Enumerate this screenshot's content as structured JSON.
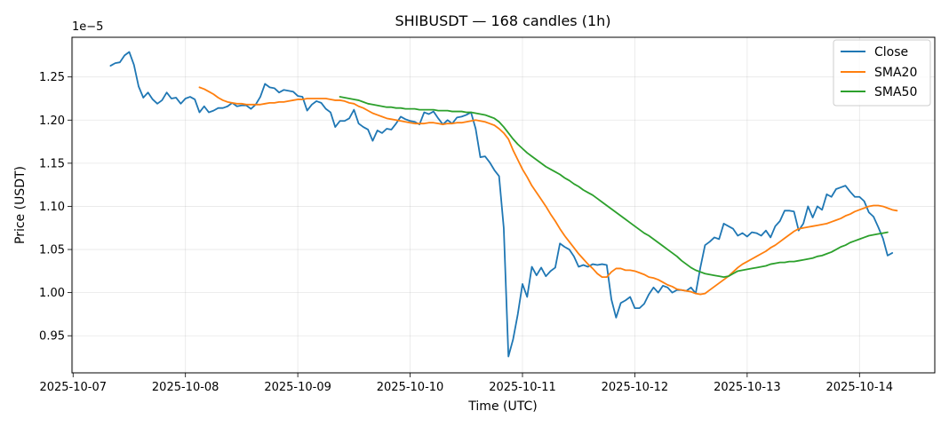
{
  "chart_data": {
    "type": "line",
    "title": "SHIBUSDT — 168 candles (1h)",
    "xlabel": "Time (UTC)",
    "ylabel": "Price (USDT)",
    "y_offset_label": "1e−5",
    "x_ticks": [
      "2025-10-07",
      "2025-10-08",
      "2025-10-09",
      "2025-10-10",
      "2025-10-11",
      "2025-10-12",
      "2025-10-13",
      "2025-10-14"
    ],
    "y_ticks": [
      "0.95",
      "1.00",
      "1.05",
      "1.10",
      "1.15",
      "1.20",
      "1.25"
    ],
    "xlim_days": [
      -0.01,
      7.67
    ],
    "ylim": [
      0.907,
      1.296
    ],
    "grid": true,
    "legend_position": "top-right",
    "x_start_time": "2025-10-07T08:00Z",
    "x_step_hours": 1,
    "series": [
      {
        "name": "Close",
        "color": "#1f77b4",
        "start_index": 0,
        "values": [
          1.263,
          1.266,
          1.267,
          1.275,
          1.279,
          1.264,
          1.239,
          1.226,
          1.232,
          1.224,
          1.219,
          1.223,
          1.232,
          1.225,
          1.226,
          1.219,
          1.225,
          1.227,
          1.224,
          1.209,
          1.216,
          1.209,
          1.211,
          1.214,
          1.214,
          1.216,
          1.22,
          1.216,
          1.217,
          1.217,
          1.213,
          1.218,
          1.227,
          1.242,
          1.238,
          1.237,
          1.232,
          1.235,
          1.234,
          1.233,
          1.228,
          1.227,
          1.211,
          1.218,
          1.222,
          1.22,
          1.213,
          1.209,
          1.192,
          1.199,
          1.199,
          1.202,
          1.212,
          1.196,
          1.192,
          1.189,
          1.176,
          1.188,
          1.185,
          1.19,
          1.189,
          1.196,
          1.204,
          1.201,
          1.199,
          1.198,
          1.195,
          1.209,
          1.207,
          1.21,
          1.202,
          1.195,
          1.2,
          1.196,
          1.203,
          1.204,
          1.206,
          1.209,
          1.19,
          1.157,
          1.158,
          1.151,
          1.142,
          1.135,
          1.075,
          0.926,
          0.946,
          0.975,
          1.01,
          0.995,
          1.03,
          1.02,
          1.029,
          1.019,
          1.025,
          1.029,
          1.057,
          1.053,
          1.05,
          1.042,
          1.03,
          1.032,
          1.03,
          1.033,
          1.032,
          1.033,
          1.032,
          0.992,
          0.971,
          0.988,
          0.991,
          0.995,
          0.982,
          0.982,
          0.987,
          0.998,
          1.006,
          1.0,
          1.008,
          1.006,
          1.0,
          1.003,
          1.003,
          1.002,
          1.006,
          0.999,
          1.029,
          1.055,
          1.059,
          1.064,
          1.062,
          1.08,
          1.077,
          1.074,
          1.066,
          1.069,
          1.065,
          1.07,
          1.069,
          1.066,
          1.072,
          1.064,
          1.077,
          1.083,
          1.095,
          1.095,
          1.094,
          1.072,
          1.08,
          1.1,
          1.087,
          1.1,
          1.096,
          1.114,
          1.111,
          1.12,
          1.122,
          1.124,
          1.117,
          1.111,
          1.111,
          1.106,
          1.093,
          1.088,
          1.076,
          1.063,
          1.043,
          1.046
        ]
      },
      {
        "name": "SMA20",
        "color": "#ff7f0e",
        "start_index": 19,
        "values": [
          1.238,
          1.236,
          1.233,
          1.23,
          1.226,
          1.223,
          1.221,
          1.22,
          1.219,
          1.219,
          1.218,
          1.218,
          1.218,
          1.218,
          1.219,
          1.22,
          1.22,
          1.221,
          1.221,
          1.222,
          1.223,
          1.224,
          1.224,
          1.225,
          1.225,
          1.225,
          1.225,
          1.225,
          1.224,
          1.223,
          1.223,
          1.222,
          1.22,
          1.219,
          1.216,
          1.214,
          1.211,
          1.208,
          1.206,
          1.204,
          1.202,
          1.201,
          1.2,
          1.199,
          1.198,
          1.197,
          1.196,
          1.196,
          1.196,
          1.197,
          1.197,
          1.196,
          1.195,
          1.196,
          1.196,
          1.197,
          1.197,
          1.198,
          1.199,
          1.2,
          1.199,
          1.198,
          1.196,
          1.194,
          1.19,
          1.185,
          1.178,
          1.165,
          1.154,
          1.143,
          1.134,
          1.124,
          1.116,
          1.108,
          1.1,
          1.091,
          1.083,
          1.074,
          1.066,
          1.059,
          1.052,
          1.045,
          1.039,
          1.033,
          1.028,
          1.022,
          1.018,
          1.018,
          1.024,
          1.028,
          1.028,
          1.026,
          1.026,
          1.025,
          1.023,
          1.021,
          1.018,
          1.017,
          1.015,
          1.012,
          1.009,
          1.007,
          1.004,
          1.003,
          1.002,
          1.001,
          0.999,
          0.998,
          0.999,
          1.003,
          1.007,
          1.011,
          1.015,
          1.019,
          1.024,
          1.029,
          1.033,
          1.036,
          1.039,
          1.042,
          1.045,
          1.048,
          1.052,
          1.055,
          1.059,
          1.063,
          1.067,
          1.071,
          1.074,
          1.075,
          1.076,
          1.077,
          1.078,
          1.079,
          1.08,
          1.082,
          1.084,
          1.086,
          1.089,
          1.091,
          1.094,
          1.096,
          1.098,
          1.1,
          1.101,
          1.101,
          1.1,
          1.098,
          1.096,
          1.095
        ]
      },
      {
        "name": "SMA50",
        "color": "#2ca02c",
        "start_index": 49,
        "values": [
          1.227,
          1.226,
          1.225,
          1.224,
          1.223,
          1.221,
          1.219,
          1.218,
          1.217,
          1.216,
          1.215,
          1.215,
          1.214,
          1.214,
          1.213,
          1.213,
          1.213,
          1.212,
          1.212,
          1.212,
          1.212,
          1.211,
          1.211,
          1.211,
          1.21,
          1.21,
          1.21,
          1.209,
          1.209,
          1.208,
          1.207,
          1.206,
          1.204,
          1.202,
          1.198,
          1.192,
          1.185,
          1.178,
          1.172,
          1.167,
          1.162,
          1.158,
          1.154,
          1.15,
          1.146,
          1.143,
          1.14,
          1.137,
          1.133,
          1.13,
          1.126,
          1.123,
          1.119,
          1.116,
          1.113,
          1.109,
          1.105,
          1.101,
          1.097,
          1.093,
          1.089,
          1.085,
          1.081,
          1.077,
          1.073,
          1.069,
          1.066,
          1.062,
          1.058,
          1.054,
          1.05,
          1.046,
          1.042,
          1.037,
          1.033,
          1.029,
          1.026,
          1.024,
          1.022,
          1.021,
          1.02,
          1.019,
          1.018,
          1.019,
          1.022,
          1.025,
          1.026,
          1.027,
          1.028,
          1.029,
          1.03,
          1.031,
          1.033,
          1.034,
          1.035,
          1.035,
          1.036,
          1.036,
          1.037,
          1.038,
          1.039,
          1.04,
          1.042,
          1.043,
          1.045,
          1.047,
          1.05,
          1.053,
          1.055,
          1.058,
          1.06,
          1.062,
          1.064,
          1.066,
          1.067,
          1.068,
          1.069,
          1.07
        ]
      }
    ]
  }
}
